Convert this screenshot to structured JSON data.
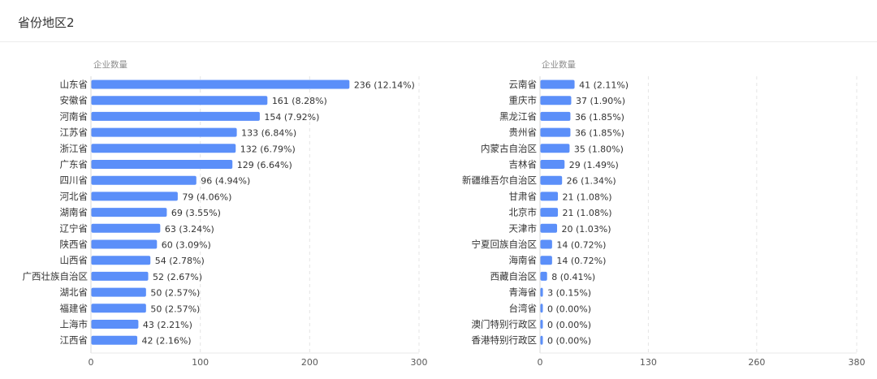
{
  "header": {
    "title": "省份地区2"
  },
  "chart_data": [
    {
      "type": "bar",
      "orientation": "horizontal",
      "ylabel": "企业数量",
      "xlim": [
        0,
        300
      ],
      "xticks": [
        0,
        100,
        200,
        300
      ],
      "bar_color": "#5b8ff9",
      "label_format": "{v} ({p})",
      "categories": [
        "山东省",
        "安徽省",
        "河南省",
        "江苏省",
        "浙江省",
        "广东省",
        "四川省",
        "河北省",
        "湖南省",
        "辽宁省",
        "陕西省",
        "山西省",
        "广西壮族自治区",
        "湖北省",
        "福建省",
        "上海市",
        "江西省"
      ],
      "values": [
        236,
        161,
        154,
        133,
        132,
        129,
        96,
        79,
        69,
        63,
        60,
        54,
        52,
        50,
        50,
        43,
        42
      ],
      "percents": [
        "12.14%",
        "8.28%",
        "7.92%",
        "6.84%",
        "6.79%",
        "6.64%",
        "4.94%",
        "4.06%",
        "3.55%",
        "3.24%",
        "3.09%",
        "2.78%",
        "2.67%",
        "2.57%",
        "2.57%",
        "2.21%",
        "2.16%"
      ]
    },
    {
      "type": "bar",
      "orientation": "horizontal",
      "ylabel": "企业数量",
      "xlim": [
        0,
        380
      ],
      "xticks": [
        0,
        130,
        260,
        380
      ],
      "bar_color": "#5b8ff9",
      "label_format": "{v} ({p})",
      "categories": [
        "云南省",
        "重庆市",
        "黑龙江省",
        "贵州省",
        "内蒙古自治区",
        "吉林省",
        "新疆维吾尔自治区",
        "甘肃省",
        "北京市",
        "天津市",
        "宁夏回族自治区",
        "海南省",
        "西藏自治区",
        "青海省",
        "台湾省",
        "澳门特别行政区",
        "香港特别行政区"
      ],
      "values": [
        41,
        37,
        36,
        36,
        35,
        29,
        26,
        21,
        21,
        20,
        14,
        14,
        8,
        3,
        0,
        0,
        0
      ],
      "percents": [
        "2.11%",
        "1.90%",
        "1.85%",
        "1.85%",
        "1.80%",
        "1.49%",
        "1.34%",
        "1.08%",
        "1.08%",
        "1.03%",
        "0.72%",
        "0.72%",
        "0.41%",
        "0.15%",
        "0.00%",
        "0.00%",
        "0.00%"
      ]
    }
  ]
}
